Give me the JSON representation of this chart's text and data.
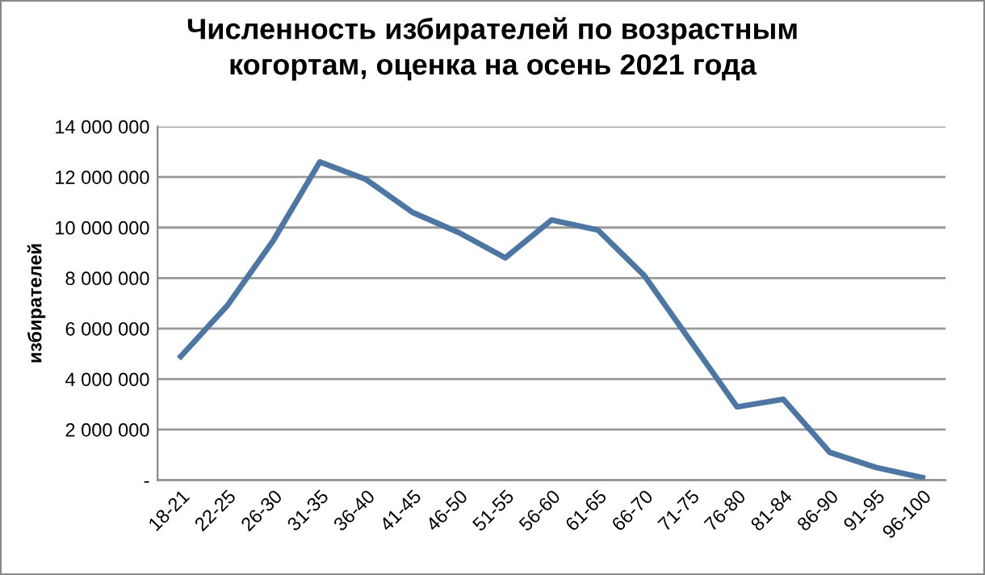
{
  "chart_data": {
    "type": "line",
    "title": "Численность избирателей по возрастным\nкогортам, оценка на осень 2021 года",
    "ylabel": "избирателей",
    "categories": [
      "18-21",
      "22-25",
      "26-30",
      "31-35",
      "36-40",
      "41-45",
      "46-50",
      "51-55",
      "56-60",
      "61-65",
      "66-70",
      "71-75",
      "76-80",
      "81-84",
      "86-90",
      "91-95",
      "96-100"
    ],
    "series": [
      {
        "color": "#4e76a2",
        "values": [
          4900000,
          6900000,
          9500000,
          12600000,
          11900000,
          10600000,
          9800000,
          8800000,
          10300000,
          9900000,
          8100000,
          5500000,
          2900000,
          3200000,
          1100000,
          500000,
          100000
        ]
      }
    ],
    "ylim": [
      0,
      14000000
    ],
    "yticks": [
      {
        "value": 0,
        "label": "-"
      },
      {
        "value": 2000000,
        "label": "2 000 000"
      },
      {
        "value": 4000000,
        "label": "4 000 000"
      },
      {
        "value": 6000000,
        "label": "6 000 000"
      },
      {
        "value": 8000000,
        "label": "8 000 000"
      },
      {
        "value": 10000000,
        "label": "10 000 000"
      },
      {
        "value": 12000000,
        "label": "12 000 000"
      },
      {
        "value": 14000000,
        "label": "14 000 000"
      }
    ],
    "grid": "y",
    "legend": false,
    "marker": "none",
    "line_style": "solid"
  }
}
